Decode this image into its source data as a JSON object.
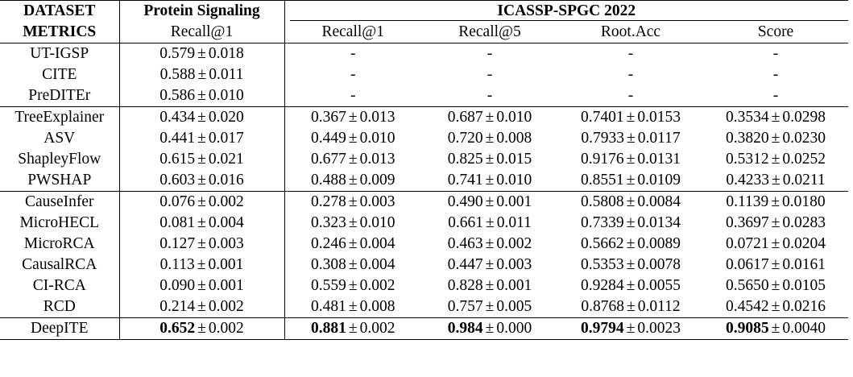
{
  "header": {
    "row1": {
      "dataset_label": "DATASET",
      "group1": "Protein Signaling",
      "group2": "ICASSP-SPGC 2022"
    },
    "row2": {
      "metrics_label": "METRICS",
      "columns": [
        "Recall@1",
        "Recall@1",
        "Recall@5",
        "Root.Acc",
        "Score"
      ]
    }
  },
  "groups": [
    {
      "rows": [
        {
          "method": "UT-IGSP",
          "cells": [
            {
              "v": "0.579",
              "e": "0.018"
            },
            {
              "v": "-"
            },
            {
              "v": "-"
            },
            {
              "v": "-"
            },
            {
              "v": "-"
            }
          ]
        },
        {
          "method": "CITE",
          "cells": [
            {
              "v": "0.588",
              "e": "0.011"
            },
            {
              "v": "-"
            },
            {
              "v": "-"
            },
            {
              "v": "-"
            },
            {
              "v": "-"
            }
          ]
        },
        {
          "method": "PreDITEr",
          "cells": [
            {
              "v": "0.586",
              "e": "0.010"
            },
            {
              "v": "-"
            },
            {
              "v": "-"
            },
            {
              "v": "-"
            },
            {
              "v": "-"
            }
          ]
        }
      ]
    },
    {
      "rows": [
        {
          "method": "TreeExplainer",
          "cells": [
            {
              "v": "0.434",
              "e": "0.020"
            },
            {
              "v": "0.367",
              "e": "0.013"
            },
            {
              "v": "0.687",
              "e": "0.010"
            },
            {
              "v": "0.7401",
              "e": "0.0153"
            },
            {
              "v": "0.3534",
              "e": "0.0298"
            }
          ]
        },
        {
          "method": "ASV",
          "cells": [
            {
              "v": "0.441",
              "e": "0.017"
            },
            {
              "v": "0.449",
              "e": "0.010"
            },
            {
              "v": "0.720",
              "e": "0.008"
            },
            {
              "v": "0.7933",
              "e": "0.0117"
            },
            {
              "v": "0.3820",
              "e": "0.0230"
            }
          ]
        },
        {
          "method": "ShapleyFlow",
          "cells": [
            {
              "v": "0.615",
              "e": "0.021"
            },
            {
              "v": "0.677",
              "e": "0.013"
            },
            {
              "v": "0.825",
              "e": "0.015"
            },
            {
              "v": "0.9176",
              "e": "0.0131"
            },
            {
              "v": "0.5312",
              "e": "0.0252"
            }
          ]
        },
        {
          "method": "PWSHAP",
          "cells": [
            {
              "v": "0.603",
              "e": "0.016"
            },
            {
              "v": "0.488",
              "e": "0.009"
            },
            {
              "v": "0.741",
              "e": "0.010"
            },
            {
              "v": "0.8551",
              "e": "0.0109"
            },
            {
              "v": "0.4233",
              "e": "0.0211"
            }
          ]
        }
      ]
    },
    {
      "rows": [
        {
          "method": "CauseInfer",
          "cells": [
            {
              "v": "0.076",
              "e": "0.002"
            },
            {
              "v": "0.278",
              "e": "0.003"
            },
            {
              "v": "0.490",
              "e": "0.001"
            },
            {
              "v": "0.5808",
              "e": "0.0084"
            },
            {
              "v": "0.1139",
              "e": "0.0180"
            }
          ]
        },
        {
          "method": "MicroHECL",
          "cells": [
            {
              "v": "0.081",
              "e": "0.004"
            },
            {
              "v": "0.323",
              "e": "0.010"
            },
            {
              "v": "0.661",
              "e": "0.011"
            },
            {
              "v": "0.7339",
              "e": "0.0134"
            },
            {
              "v": "0.3697",
              "e": "0.0283"
            }
          ]
        },
        {
          "method": "MicroRCA",
          "cells": [
            {
              "v": "0.127",
              "e": "0.003"
            },
            {
              "v": "0.246",
              "e": "0.004"
            },
            {
              "v": "0.463",
              "e": "0.002"
            },
            {
              "v": "0.5662",
              "e": "0.0089"
            },
            {
              "v": "0.0721",
              "e": "0.0204"
            }
          ]
        },
        {
          "method": "CausalRCA",
          "cells": [
            {
              "v": "0.113",
              "e": "0.001"
            },
            {
              "v": "0.308",
              "e": "0.004"
            },
            {
              "v": "0.447",
              "e": "0.003"
            },
            {
              "v": "0.5353",
              "e": "0.0078"
            },
            {
              "v": "0.0617",
              "e": "0.0161"
            }
          ]
        },
        {
          "method": "CI-RCA",
          "cells": [
            {
              "v": "0.090",
              "e": "0.001"
            },
            {
              "v": "0.559",
              "e": "0.002"
            },
            {
              "v": "0.828",
              "e": "0.001"
            },
            {
              "v": "0.9284",
              "e": "0.0055"
            },
            {
              "v": "0.5650",
              "e": "0.0105"
            }
          ]
        },
        {
          "method": "RCD",
          "cells": [
            {
              "v": "0.214",
              "e": "0.002"
            },
            {
              "v": "0.481",
              "e": "0.008"
            },
            {
              "v": "0.757",
              "e": "0.005"
            },
            {
              "v": "0.8768",
              "e": "0.0112"
            },
            {
              "v": "0.4542",
              "e": "0.0216"
            }
          ]
        }
      ]
    },
    {
      "rows": [
        {
          "method": "DeepITE",
          "cells": [
            {
              "v": "0.652",
              "e": "0.002",
              "bold": true
            },
            {
              "v": "0.881",
              "e": "0.002",
              "bold": true
            },
            {
              "v": "0.984",
              "e": "0.000",
              "bold": true
            },
            {
              "v": "0.9794",
              "e": "0.0023",
              "bold": true
            },
            {
              "v": "0.9085",
              "e": "0.0040",
              "bold": true
            }
          ]
        }
      ]
    }
  ]
}
